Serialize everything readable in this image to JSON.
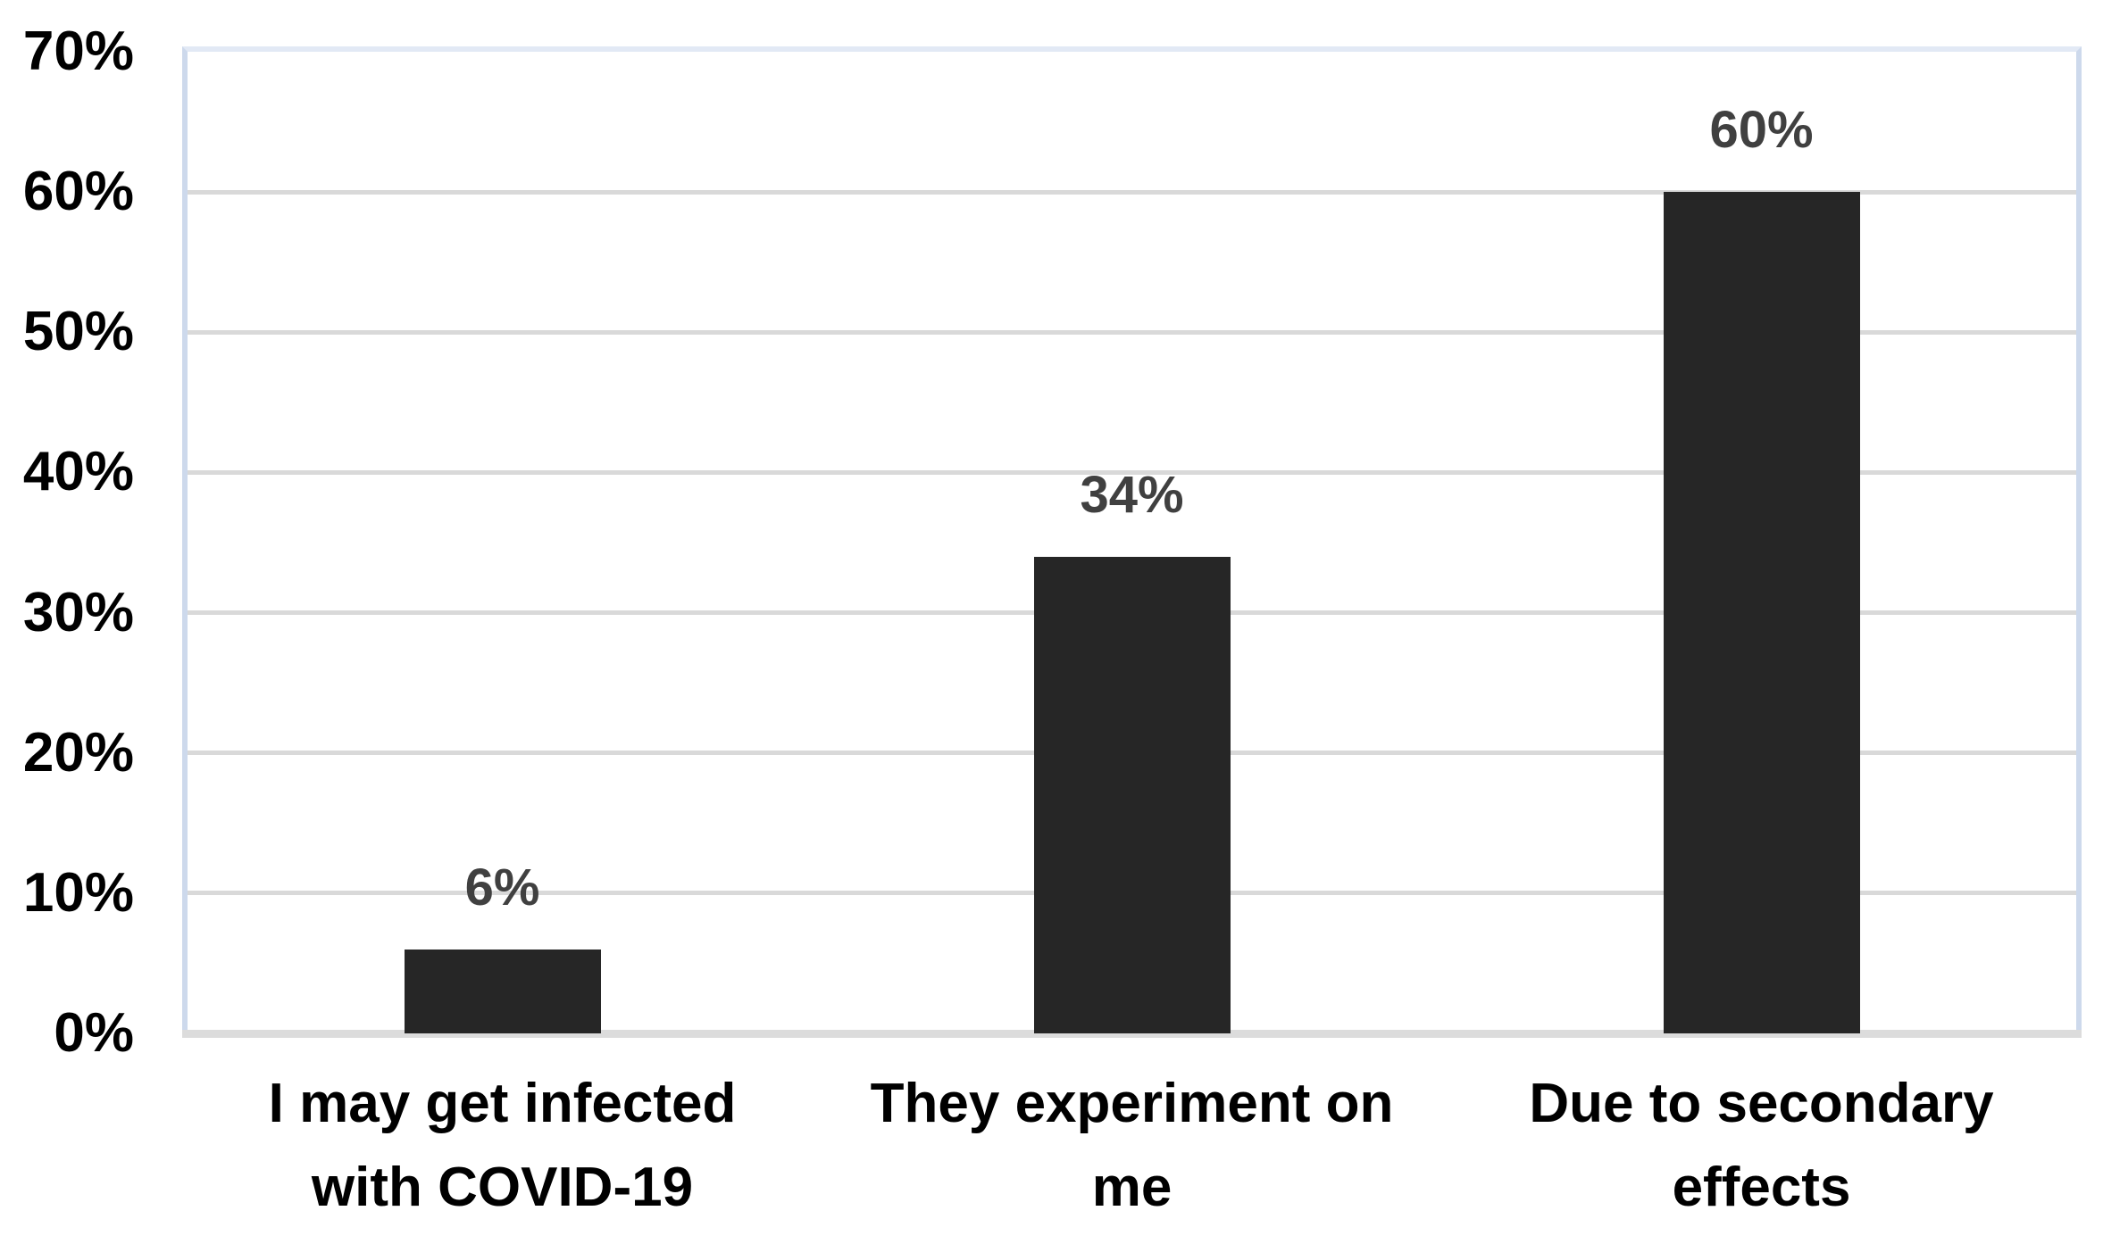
{
  "chart_data": {
    "type": "bar",
    "title": "",
    "xlabel": "",
    "ylabel": "",
    "categories": [
      "I may get infected with COVID-19",
      "They experiment on me",
      "Due to secondary effects"
    ],
    "category_lines": [
      [
        "I may get infected",
        "with COVID-19"
      ],
      [
        "They experiment on",
        "me"
      ],
      [
        "Due to secondary",
        "effects"
      ]
    ],
    "values": [
      6,
      34,
      60
    ],
    "data_labels": [
      "6%",
      "34%",
      "60%"
    ],
    "ylim": [
      0,
      70
    ],
    "ytick_step": 10,
    "yticks": [
      {
        "value": 0,
        "label": "0%"
      },
      {
        "value": 10,
        "label": "10%"
      },
      {
        "value": 20,
        "label": "20%"
      },
      {
        "value": 30,
        "label": "30%"
      },
      {
        "value": 40,
        "label": "40%"
      },
      {
        "value": 50,
        "label": "50%"
      },
      {
        "value": 60,
        "label": "60%"
      },
      {
        "value": 70,
        "label": "70%"
      }
    ],
    "grid": true,
    "legend": false,
    "colors": {
      "bar": "#262626",
      "gridline": "#d9d9d9",
      "axis_line": "#dcdcdc",
      "plot_border": "#cdd9ec",
      "data_label": "#404040",
      "tick_label": "#000000",
      "category_label": "#000000",
      "background": "#ffffff"
    }
  }
}
